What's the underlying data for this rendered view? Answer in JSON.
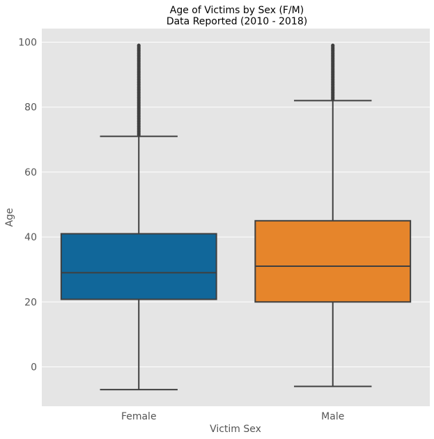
{
  "chart_data": {
    "type": "box",
    "title_line1": "Age of Victims by Sex (F/M)",
    "title_line2": "Data Reported (2010 - 2018)",
    "xlabel": "Victim Sex",
    "ylabel": "Age",
    "ylim": [
      -12,
      104
    ],
    "yticks": [
      0,
      20,
      40,
      60,
      80,
      100
    ],
    "grid": true,
    "categories": [
      "Female",
      "Male"
    ],
    "boxes": [
      {
        "category": "Female",
        "color": "#11679a",
        "whisker_low": -7,
        "q1": 20.8,
        "median": 29,
        "q3": 41,
        "whisker_high": 71,
        "outlier_min": 71.5,
        "outlier_max": 99
      },
      {
        "category": "Male",
        "color": "#e6852b",
        "whisker_low": -6,
        "q1": 20,
        "median": 31,
        "q3": 45,
        "whisker_high": 82,
        "outlier_min": 82.5,
        "outlier_max": 99
      }
    ]
  }
}
